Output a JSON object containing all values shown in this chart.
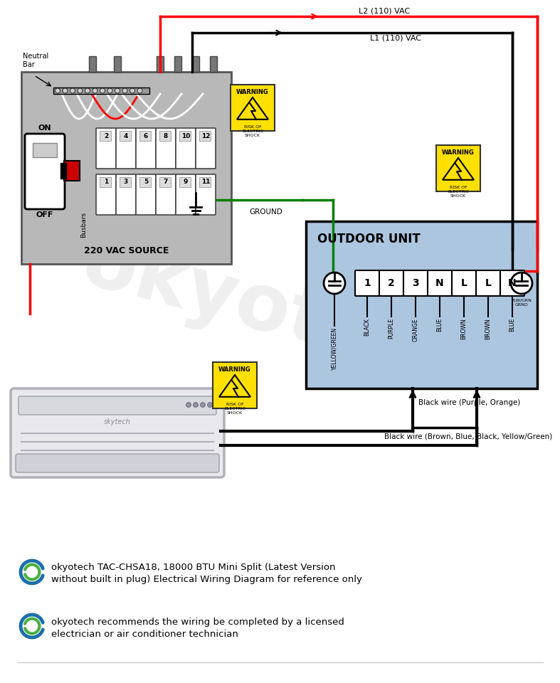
{
  "bg_color": "#ffffff",
  "panel_color": "#b8b8b8",
  "outdoor_color": "#adc6e0",
  "outdoor_border": "#000000",
  "outdoor_title": "OUTDOOR UNIT",
  "terminal_labels": [
    "1",
    "2",
    "3",
    "N",
    "L",
    "L",
    "N"
  ],
  "wire_labels_below": [
    "YELLOW/GREEN",
    "BLACK",
    "PURPLE",
    "ORANGE",
    "BLUE",
    "BROWN",
    "BROWN",
    "BLUE"
  ],
  "l2_label": "L2 (110) VAC",
  "l1_label": "L1 (110) VAC",
  "ground_label": "GROUND",
  "source_label": "220 VAC SOURCE",
  "panel_on": "ON",
  "panel_off": "OFF",
  "panel_bus": "Busbars",
  "panel_neutral": "Neutral\nBar",
  "black_wire1_label": "Black wire (Purple, Orange)",
  "black_wire2_label": "Black wire (Brown, Blue, Black, Yellow/Green)",
  "warning_text": "WARNING",
  "risk_text": "RISK OF\nELECTRIC\nSHOCK",
  "footnote1_line1": "okyotech TAC-CHSA18, 18000 BTU Mini Split (Latest Version",
  "footnote1_line2": "without built in plug) Electrical Wiring Diagram for reference only",
  "footnote2_line1": "okyotech recommends the wiring be completed by a licensed",
  "footnote2_line2": "electrician or air conditioner technician",
  "watermark": "okyotech",
  "ylw_grn_label": "YLW/GRN\nGRND"
}
